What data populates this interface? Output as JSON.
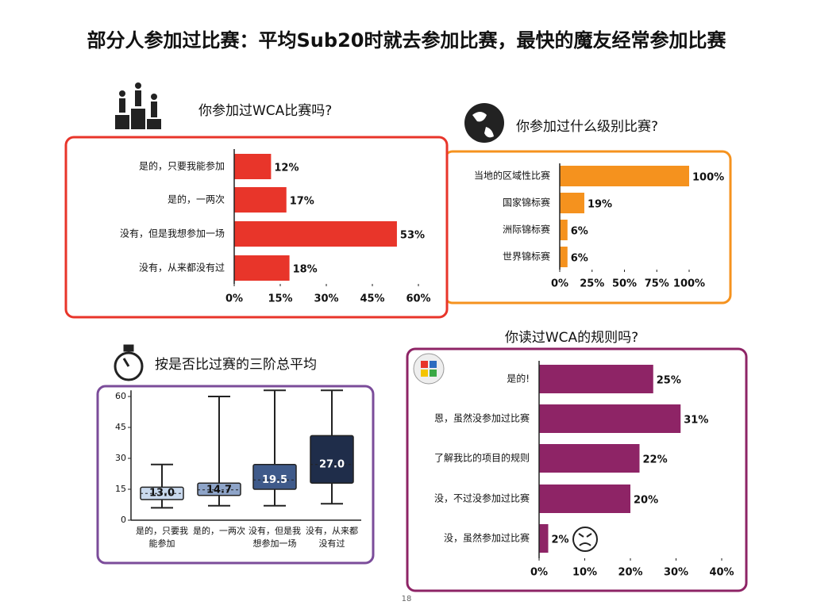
{
  "title": "部分人参加过比赛：平均Sub20时就去参加比赛，最快的魔友经常参加比赛",
  "page_number": "18",
  "chart_data": [
    {
      "type": "hbar",
      "title": "你参加过WCA比赛吗?",
      "color": "#e8352a",
      "categories": [
        "是的，只要我能参加",
        "是的，一两次",
        "没有，但是我想参加一场",
        "没有，从来都没有过"
      ],
      "values": [
        12,
        17,
        53,
        18
      ],
      "value_labels": [
        "12%",
        "17%",
        "53%",
        "18%"
      ],
      "xlim": [
        0,
        60
      ],
      "xticks": [
        {
          "value": 0,
          "label": "0%"
        },
        {
          "value": 15,
          "label": "15%"
        },
        {
          "value": 30,
          "label": "30%"
        },
        {
          "value": 45,
          "label": "45%"
        },
        {
          "value": 60,
          "label": "60%"
        }
      ]
    },
    {
      "type": "hbar",
      "title": "你参加过什么级别比赛?",
      "color": "#f5921e",
      "categories": [
        "当地的区域性比赛",
        "国家锦标赛",
        "洲际锦标赛",
        "世界锦标赛"
      ],
      "values": [
        100,
        19,
        6,
        6
      ],
      "value_labels": [
        "100%",
        "19%",
        "6%",
        "6%"
      ],
      "xlim": [
        0,
        100
      ],
      "xticks": [
        {
          "value": 0,
          "label": "0%"
        },
        {
          "value": 25,
          "label": "25%"
        },
        {
          "value": 50,
          "label": "50%"
        },
        {
          "value": 75,
          "label": "75%"
        },
        {
          "value": 100,
          "label": "100%"
        }
      ]
    },
    {
      "type": "box",
      "title": "按是否比过赛的三阶总平均",
      "categories": [
        "是的，只要我能参加",
        "是的，一两次",
        "没有，但是我想参加一场",
        "没有，从来都没有过"
      ],
      "whisker_low": [
        6,
        7,
        7,
        8
      ],
      "q1": [
        10,
        12,
        15,
        18
      ],
      "median": [
        13.0,
        14.7,
        19.5,
        27.0
      ],
      "value_labels": [
        "13.0",
        "14.7",
        "19.5",
        "27.0"
      ],
      "q3": [
        16,
        18,
        27,
        41
      ],
      "whisker_high": [
        27,
        60,
        63,
        63
      ],
      "colors": [
        "#c9d9ee",
        "#8ea4c8",
        "#3f5a8a",
        "#1f2d4a"
      ],
      "ylim": [
        0,
        63
      ],
      "yticks": [
        0,
        15,
        30,
        45,
        60
      ]
    },
    {
      "type": "hbar",
      "title": "你读过WCA的规则吗?",
      "color": "#8e2466",
      "categories": [
        "是的!",
        "恩，虽然没参加过比赛",
        "了解我比的项目的规则",
        "没，不过没参加过比赛",
        "没，虽然参加过比赛"
      ],
      "values": [
        25,
        31,
        22,
        20,
        2
      ],
      "value_labels": [
        "25%",
        "31%",
        "22%",
        "20%",
        "2%"
      ],
      "xlim": [
        0,
        40
      ],
      "xticks": [
        {
          "value": 0,
          "label": "0%"
        },
        {
          "value": 10,
          "label": "10%"
        },
        {
          "value": 20,
          "label": "20%"
        },
        {
          "value": 30,
          "label": "30%"
        },
        {
          "value": 40,
          "label": "40%"
        }
      ]
    }
  ]
}
